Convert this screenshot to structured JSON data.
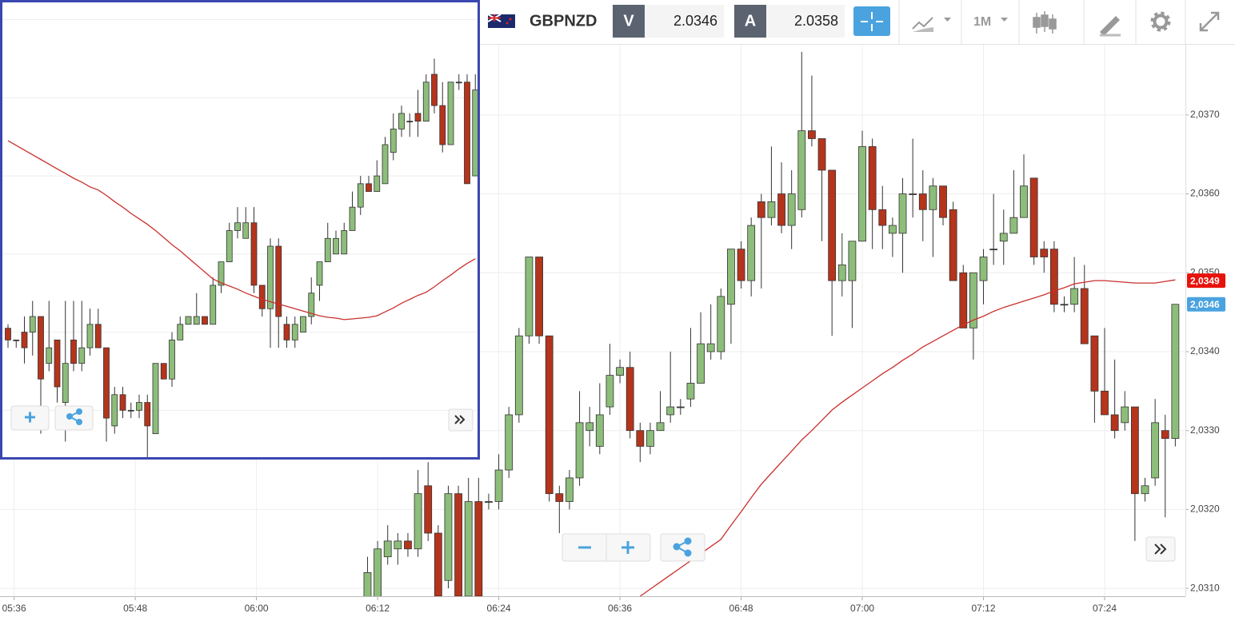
{
  "toolbar": {
    "symbol": "GBPNZD",
    "bid_label": "V",
    "bid": "2.0346",
    "ask_label": "A",
    "ask": "2.0358",
    "timeframe": "1M"
  },
  "chart_data": [
    {
      "type": "candlestick",
      "x": [
        "06:11",
        "06:12",
        "06:13",
        "06:14",
        "06:15",
        "06:16",
        "06:17",
        "06:18",
        "06:19",
        "06:20",
        "06:21",
        "06:22",
        "06:23",
        "06:24",
        "06:25",
        "06:26",
        "06:27",
        "06:28",
        "06:29",
        "06:30",
        "06:31",
        "06:32",
        "06:33",
        "06:34",
        "06:35",
        "06:36",
        "06:37",
        "06:38",
        "06:39",
        "06:40",
        "06:41",
        "06:42",
        "06:43",
        "06:44",
        "06:45",
        "06:46",
        "06:47",
        "06:48",
        "06:49",
        "06:50",
        "06:51",
        "06:52",
        "06:53",
        "06:54",
        "06:55",
        "06:56",
        "06:57",
        "06:58",
        "06:59",
        "07:00",
        "07:01",
        "07:02",
        "07:03",
        "07:04",
        "07:05",
        "07:06",
        "07:07",
        "07:08",
        "07:09",
        "07:10",
        "07:11",
        "07:12",
        "07:13",
        "07:14",
        "07:15",
        "07:16",
        "07:17",
        "07:18",
        "07:19",
        "07:20",
        "07:21",
        "07:22",
        "07:23",
        "07:24",
        "07:25",
        "07:26",
        "07:27",
        "07:28",
        "07:29",
        "07:30",
        "07:31"
      ],
      "ohlc": [
        [
          2.0308,
          2.0314,
          2.0307,
          2.0312
        ],
        [
          2.0308,
          2.0316,
          2.0307,
          2.0315
        ],
        [
          2.0314,
          2.0318,
          2.0313,
          2.0316
        ],
        [
          2.0315,
          2.0317,
          2.0313,
          2.0316
        ],
        [
          2.0316,
          2.0317,
          2.0314,
          2.0315
        ],
        [
          2.0315,
          2.0325,
          2.0314,
          2.0322
        ],
        [
          2.0323,
          2.0326,
          2.0316,
          2.0317
        ],
        [
          2.0317,
          2.0318,
          2.0308,
          2.0309
        ],
        [
          2.0311,
          2.0323,
          2.031,
          2.0322
        ],
        [
          2.0322,
          2.0323,
          2.0308,
          2.0309
        ],
        [
          2.0309,
          2.0324,
          2.0308,
          2.0321
        ],
        [
          2.0321,
          2.0324,
          2.0308,
          2.0309
        ],
        [
          2.0321,
          2.0322,
          2.032,
          2.0321
        ],
        [
          2.0321,
          2.0327,
          2.032,
          2.0325
        ],
        [
          2.0325,
          2.0333,
          2.0324,
          2.0332
        ],
        [
          2.0332,
          2.0343,
          2.0331,
          2.0342
        ],
        [
          2.0342,
          2.0352,
          2.0341,
          2.0352
        ],
        [
          2.0352,
          2.0352,
          2.0341,
          2.0342
        ],
        [
          2.0342,
          2.0342,
          2.0321,
          2.0322
        ],
        [
          2.0322,
          2.0323,
          2.0317,
          2.0321
        ],
        [
          2.0321,
          2.0325,
          2.032,
          2.0324
        ],
        [
          2.0324,
          2.0335,
          2.0323,
          2.0331
        ],
        [
          2.033,
          2.0333,
          2.0328,
          2.0331
        ],
        [
          2.0328,
          2.0336,
          2.0327,
          2.0332
        ],
        [
          2.0333,
          2.0341,
          2.0332,
          2.0337
        ],
        [
          2.0337,
          2.0339,
          2.0336,
          2.0338
        ],
        [
          2.0338,
          2.034,
          2.0329,
          2.033
        ],
        [
          2.033,
          2.0331,
          2.0326,
          2.0328
        ],
        [
          2.0328,
          2.0331,
          2.0327,
          2.033
        ],
        [
          2.033,
          2.0335,
          2.033,
          2.0331
        ],
        [
          2.0332,
          2.034,
          2.0331,
          2.0333
        ],
        [
          2.0333,
          2.0334,
          2.0332,
          2.0333
        ],
        [
          2.0334,
          2.0343,
          2.0333,
          2.0336
        ],
        [
          2.0336,
          2.0345,
          2.0336,
          2.0341
        ],
        [
          2.034,
          2.0346,
          2.0339,
          2.0341
        ],
        [
          2.034,
          2.0348,
          2.0339,
          2.0347
        ],
        [
          2.0346,
          2.0353,
          2.0341,
          2.0353
        ],
        [
          2.0353,
          2.0354,
          2.0348,
          2.0349
        ],
        [
          2.0349,
          2.0357,
          2.0347,
          2.0356
        ],
        [
          2.0359,
          2.036,
          2.0348,
          2.0357
        ],
        [
          2.0357,
          2.0366,
          2.0356,
          2.0359
        ],
        [
          2.036,
          2.0364,
          2.0355,
          2.0356
        ],
        [
          2.0356,
          2.0363,
          2.0353,
          2.036
        ],
        [
          2.0358,
          2.0378,
          2.0357,
          2.0368
        ],
        [
          2.0368,
          2.0375,
          2.0366,
          2.0367
        ],
        [
          2.0367,
          2.0367,
          2.0354,
          2.0363
        ],
        [
          2.0363,
          2.0363,
          2.0342,
          2.0349
        ],
        [
          2.0349,
          2.0355,
          2.0347,
          2.0351
        ],
        [
          2.0349,
          2.0354,
          2.0343,
          2.0354
        ],
        [
          2.0354,
          2.0368,
          2.0354,
          2.0366
        ],
        [
          2.0366,
          2.0367,
          2.0353,
          2.0358
        ],
        [
          2.0358,
          2.0361,
          2.0353,
          2.0356
        ],
        [
          2.0355,
          2.0357,
          2.0352,
          2.0356
        ],
        [
          2.0355,
          2.0362,
          2.035,
          2.036
        ],
        [
          2.036,
          2.0367,
          2.0357,
          2.036
        ],
        [
          2.036,
          2.0363,
          2.0354,
          2.0358
        ],
        [
          2.0358,
          2.0362,
          2.0352,
          2.0361
        ],
        [
          2.0361,
          2.0361,
          2.0356,
          2.0357
        ],
        [
          2.0358,
          2.0359,
          2.0349,
          2.0349
        ],
        [
          2.035,
          2.0351,
          2.0343,
          2.0343
        ],
        [
          2.0343,
          2.035,
          2.0339,
          2.035
        ],
        [
          2.0349,
          2.0353,
          2.0346,
          2.0352
        ],
        [
          2.0353,
          2.036,
          2.0351,
          2.0353
        ],
        [
          2.0354,
          2.0358,
          2.0351,
          2.0355
        ],
        [
          2.0355,
          2.0363,
          2.0355,
          2.0357
        ],
        [
          2.0357,
          2.0365,
          2.0357,
          2.0361
        ],
        [
          2.0362,
          2.0362,
          2.0351,
          2.0352
        ],
        [
          2.0353,
          2.0354,
          2.035,
          2.0352
        ],
        [
          2.0353,
          2.0354,
          2.0345,
          2.0346
        ],
        [
          2.0346,
          2.0347,
          2.0345,
          2.0346
        ],
        [
          2.0346,
          2.0352,
          2.0345,
          2.0348
        ],
        [
          2.0348,
          2.0351,
          2.0341,
          2.0341
        ],
        [
          2.0342,
          2.0342,
          2.0331,
          2.0335
        ],
        [
          2.0335,
          2.0343,
          2.0332,
          2.0332
        ],
        [
          2.0332,
          2.0339,
          2.0329,
          2.033
        ],
        [
          2.0331,
          2.0335,
          2.033,
          2.0333
        ],
        [
          2.0333,
          2.0333,
          2.0316,
          2.0322
        ],
        [
          2.0322,
          2.0324,
          2.0321,
          2.0323
        ],
        [
          2.0324,
          2.0334,
          2.0323,
          2.0331
        ],
        [
          2.033,
          2.0332,
          2.0319,
          2.0329
        ],
        [
          2.0329,
          2.0346,
          2.0328,
          2.0346
        ]
      ],
      "up_color": "#8dbd7a",
      "down_color": "#b5341c",
      "moving_average": {
        "color": "#c9302c",
        "values": [
          null,
          null,
          null,
          null,
          null,
          null,
          null,
          null,
          null,
          null,
          null,
          null,
          null,
          null,
          null,
          null,
          null,
          null,
          null,
          null,
          null,
          null,
          null,
          null,
          null,
          null,
          null,
          2.0309,
          2.03099,
          2.03108,
          2.03117,
          2.03126,
          2.03135,
          2.03144,
          2.03153,
          2.03162,
          2.0318,
          2.03197,
          2.03215,
          2.03232,
          2.03246,
          2.0326,
          2.03274,
          2.03288,
          2.033,
          2.03313,
          2.03326,
          2.03336,
          2.03345,
          2.03354,
          2.03363,
          2.03372,
          2.0338,
          2.03389,
          2.03397,
          2.03406,
          2.03413,
          2.0342,
          2.03427,
          2.03434,
          2.0344,
          2.03445,
          2.03451,
          2.03456,
          2.0346,
          2.03464,
          2.03468,
          2.03472,
          2.03477,
          2.03481,
          2.03486,
          2.03488,
          2.0349,
          2.0349,
          2.03489,
          2.03488,
          2.03487,
          2.03487,
          2.03487,
          2.03489,
          2.03491
        ]
      },
      "xlim": [
        "05:35",
        "07:32"
      ],
      "xticks": [
        "05:36",
        "05:48",
        "06:00",
        "06:12",
        "06:24",
        "06:36",
        "06:48",
        "07:00",
        "07:12",
        "07:24"
      ],
      "ylim": [
        2.0309,
        2.0379
      ],
      "yticks": [
        {
          "value": 2.031,
          "label": "2,0310"
        },
        {
          "value": 2.032,
          "label": "2,0320"
        },
        {
          "value": 2.033,
          "label": "2,0330"
        },
        {
          "value": 2.034,
          "label": "2,0340"
        },
        {
          "value": 2.035,
          "label": "2,0350"
        },
        {
          "value": 2.036,
          "label": "2,0360"
        },
        {
          "value": 2.037,
          "label": "2,0370"
        }
      ],
      "grid": true,
      "price_badges": [
        {
          "value": 2.0349,
          "label": "2,0349",
          "color": "#e8120c"
        },
        {
          "value": 2.0346,
          "label": "2,0346",
          "color": "#4aa3df"
        }
      ]
    },
    {
      "type": "candlestick",
      "ohlc": [
        [
          2.03405,
          2.0341,
          2.0338,
          2.0339
        ],
        [
          2.0339,
          2.0339,
          2.0338,
          2.0339
        ],
        [
          2.034,
          2.0342,
          2.0336,
          2.0338
        ],
        [
          2.034,
          2.0344,
          2.0337,
          2.0342
        ],
        [
          2.0342,
          2.0342,
          2.0327,
          2.0334
        ],
        [
          2.0336,
          2.0344,
          2.0335,
          2.0338
        ],
        [
          2.0339,
          2.0339,
          2.0331,
          2.0333
        ],
        [
          2.0331,
          2.0344,
          2.0326,
          2.0336
        ],
        [
          2.0339,
          2.0344,
          2.0335,
          2.0336
        ],
        [
          2.0336,
          2.0344,
          2.0335,
          2.0338
        ],
        [
          2.0338,
          2.0343,
          2.0337,
          2.0341
        ],
        [
          2.0341,
          2.0343,
          2.0338,
          2.0338
        ],
        [
          2.0338,
          2.0338,
          2.0326,
          2.0329
        ],
        [
          2.0328,
          2.0333,
          2.0327,
          2.0332
        ],
        [
          2.0332,
          2.0333,
          2.0329,
          2.033
        ],
        [
          2.033,
          2.0331,
          2.0329,
          2.033
        ],
        [
          2.033,
          2.0332,
          2.0329,
          2.0331
        ],
        [
          2.0331,
          2.0332,
          2.0324,
          2.0328
        ],
        [
          2.0327,
          2.0336,
          2.0327,
          2.0336
        ],
        [
          2.0336,
          2.0336,
          2.0334,
          2.0334
        ],
        [
          2.0334,
          2.034,
          2.0333,
          2.0339
        ],
        [
          2.0339,
          2.0342,
          2.0339,
          2.0341
        ],
        [
          2.0341,
          2.0342,
          2.0341,
          2.0342
        ],
        [
          2.0341,
          2.0345,
          2.0341,
          2.0342
        ],
        [
          2.0342,
          2.0342,
          2.0341,
          2.0341
        ],
        [
          2.0341,
          2.0347,
          2.0341,
          2.0346
        ],
        [
          2.0346,
          2.0349,
          2.0345,
          2.0349
        ],
        [
          2.0349,
          2.0354,
          2.0349,
          2.0353
        ],
        [
          2.0353,
          2.0356,
          2.0352,
          2.0354
        ],
        [
          2.0352,
          2.0356,
          2.0352,
          2.0354
        ],
        [
          2.0354,
          2.0356,
          2.0345,
          2.0346
        ],
        [
          2.0346,
          2.0346,
          2.0342,
          2.0343
        ],
        [
          2.0343,
          2.0352,
          2.0338,
          2.0351
        ],
        [
          2.0351,
          2.0352,
          2.0338,
          2.0342
        ],
        [
          2.0341,
          2.0342,
          2.0338,
          2.0339
        ],
        [
          2.0339,
          2.0342,
          2.0338,
          2.0341
        ],
        [
          2.034,
          2.0342,
          2.034,
          2.0342
        ],
        [
          2.0342,
          2.0347,
          2.0341,
          2.0345
        ],
        [
          2.0346,
          2.0349,
          2.0344,
          2.0349
        ],
        [
          2.0349,
          2.0354,
          2.0349,
          2.0352
        ],
        [
          2.035,
          2.0353,
          2.035,
          2.0352
        ],
        [
          2.035,
          2.0354,
          2.035,
          2.0353
        ],
        [
          2.0353,
          2.0358,
          2.0353,
          2.0356
        ],
        [
          2.0356,
          2.036,
          2.0355,
          2.0359
        ],
        [
          2.0359,
          2.036,
          2.0358,
          2.0358
        ],
        [
          2.0358,
          2.0362,
          2.0358,
          2.036
        ],
        [
          2.0359,
          2.0365,
          2.0359,
          2.0364
        ],
        [
          2.0363,
          2.0368,
          2.0362,
          2.0366
        ],
        [
          2.0366,
          2.0369,
          2.0365,
          2.0368
        ],
        [
          2.0367,
          2.0368,
          2.0365,
          2.0367
        ],
        [
          2.0368,
          2.0371,
          2.0365,
          2.0367
        ],
        [
          2.0367,
          2.0373,
          2.0367,
          2.0372
        ],
        [
          2.0373,
          2.0375,
          2.0368,
          2.0369
        ],
        [
          2.0369,
          2.0372,
          2.0363,
          2.0364
        ],
        [
          2.0364,
          2.0372,
          2.0364,
          2.0372
        ],
        [
          2.0372,
          2.0373,
          2.0371,
          2.0372
        ],
        [
          2.0372,
          2.0373,
          2.0359,
          2.0359
        ],
        [
          2.036,
          2.0373,
          2.036,
          2.0371
        ]
      ],
      "up_color": "#8dbd7a",
      "down_color": "#b5341c",
      "moving_average": {
        "color": "#c9302c",
        "values": [
          2.03645,
          2.03639,
          2.03633,
          2.03627,
          2.03621,
          2.03615,
          2.03609,
          2.03603,
          2.03597,
          2.03592,
          2.03586,
          2.03582,
          2.03575,
          2.03567,
          2.0356,
          2.03552,
          2.03545,
          2.03538,
          2.0353,
          2.03521,
          2.03512,
          2.03504,
          2.03495,
          2.03486,
          2.03477,
          2.03468,
          2.03463,
          2.03459,
          2.03455,
          2.0345,
          2.03446,
          2.03442,
          2.03439,
          2.03436,
          2.03433,
          2.0343,
          2.03427,
          2.03424,
          2.03421,
          2.03419,
          2.03418,
          2.03416,
          2.03417,
          2.03418,
          2.03419,
          2.03421,
          2.03426,
          2.03431,
          2.03437,
          2.03442,
          2.03447,
          2.03451,
          2.03458,
          2.03466,
          2.03473,
          2.03481,
          2.03488,
          2.03494
        ]
      },
      "ylim": [
        2.0324,
        2.0382
      ],
      "yticks": [
        2.033,
        2.034,
        2.035,
        2.036,
        2.037,
        2.038
      ],
      "grid": true
    }
  ]
}
